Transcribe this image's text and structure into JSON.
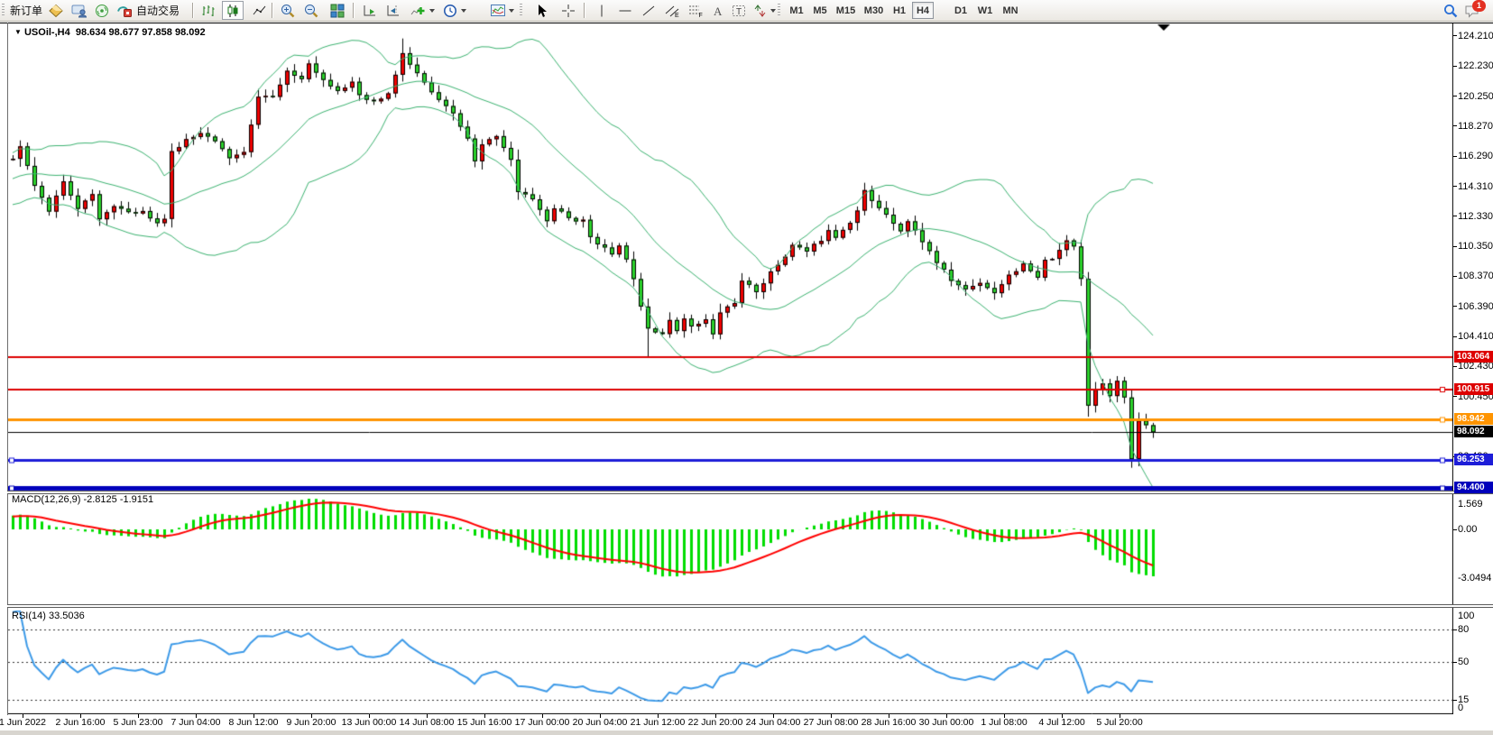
{
  "toolbar": {
    "new_order_label": "新订单",
    "auto_trading_label": "自动交易",
    "timeframes": [
      "M1",
      "M5",
      "M15",
      "M30",
      "H1",
      "H4",
      "D1",
      "W1",
      "MN"
    ],
    "selected_timeframe": "H4",
    "notification_count": "1",
    "icons": [
      "market-watch-icon",
      "community-icon",
      "signals-icon",
      "auto-trading-icon",
      "bar-chart-icon",
      "candlestick-chart-icon",
      "line-chart-icon",
      "zoom-in-icon",
      "zoom-out-icon",
      "tile-windows-icon",
      "auto-scroll-icon",
      "chart-shift-icon",
      "indicators-add-icon",
      "periods-clock-icon",
      "templates-icon",
      "cursor-icon",
      "crosshair-icon",
      "vertical-line-icon",
      "horizontal-line-icon",
      "trendline-icon",
      "equidistant-channel-icon",
      "fibonacci-icon",
      "text-icon",
      "text-label-icon",
      "arrows-icon",
      "search-icon",
      "chat-icon"
    ]
  },
  "chart": {
    "symbol": "USOil-,H4",
    "ohlc": "98.634 98.677 97.858 98.092",
    "price_axis_ticks": [
      "124.210",
      "122.230",
      "120.250",
      "118.270",
      "116.290",
      "114.310",
      "112.330",
      "110.350",
      "108.370",
      "106.390",
      "104.410",
      "102.430",
      "100.450",
      "96.490"
    ],
    "price_axis_values": [
      124.21,
      122.23,
      120.25,
      118.27,
      116.29,
      114.31,
      112.33,
      110.35,
      108.37,
      106.39,
      104.41,
      102.43,
      100.45,
      96.49
    ],
    "hlines": [
      {
        "value": 103.064,
        "label": "103.064",
        "color": "#dd0000",
        "width": 2,
        "markers": "none"
      },
      {
        "value": 100.915,
        "label": "100.915",
        "color": "#dd0000",
        "width": 2,
        "markers": "right"
      },
      {
        "value": 98.942,
        "label": "98.942",
        "color": "#ff9400",
        "width": 3,
        "markers": "right"
      },
      {
        "value": 98.092,
        "label": "98.092",
        "color": "#000000",
        "width": 1,
        "markers": "none"
      },
      {
        "value": 96.253,
        "label": "96.253",
        "color": "#1d1dd8",
        "width": 3,
        "markers": "both"
      },
      {
        "value": 94.4,
        "label": "94.400",
        "color": "#0000bb",
        "width": 5,
        "markers": "both"
      }
    ],
    "colors": {
      "bull": "#f00000",
      "bear": "#2bd22b",
      "wick": "#000000",
      "bollinger": "#3cb371",
      "macd_hist": "#00dd00",
      "macd_signal": "#ff0000",
      "rsi_line": "#3d9ae8"
    },
    "chart_data": {
      "type": "candlestick-ohlc-approx",
      "bars_per_label": 8,
      "anchors_close": [
        [
          -34,
          111.5
        ],
        [
          -26,
          112.3
        ],
        [
          -18,
          113.5
        ],
        [
          -10,
          114.8
        ],
        [
          -3,
          115.7
        ],
        [
          0,
          116.1
        ],
        [
          1,
          116.9
        ],
        [
          3,
          114.3
        ],
        [
          5,
          112.6
        ],
        [
          7,
          114.7
        ],
        [
          9,
          112.9
        ],
        [
          11,
          113.7
        ],
        [
          12,
          112.1
        ],
        [
          14,
          113.1
        ],
        [
          16,
          112.5
        ],
        [
          18,
          112.7
        ],
        [
          20,
          111.9
        ],
        [
          21,
          112.2
        ],
        [
          22,
          116.5
        ],
        [
          24,
          117.4
        ],
        [
          26,
          117.9
        ],
        [
          28,
          117.2
        ],
        [
          30,
          116.2
        ],
        [
          32,
          116.5
        ],
        [
          33,
          118.3
        ],
        [
          34,
          120.3
        ],
        [
          36,
          120.2
        ],
        [
          38,
          121.8
        ],
        [
          40,
          121.4
        ],
        [
          41,
          122.5
        ],
        [
          43,
          121.3
        ],
        [
          45,
          120.7
        ],
        [
          47,
          121.1
        ],
        [
          48,
          120.2
        ],
        [
          50,
          119.8
        ],
        [
          52,
          120.4
        ],
        [
          53,
          121.6
        ],
        [
          54,
          123.1
        ],
        [
          55,
          122.3
        ],
        [
          57,
          121.1
        ],
        [
          59,
          119.9
        ],
        [
          61,
          119.1
        ],
        [
          63,
          117.4
        ],
        [
          64,
          115.9
        ],
        [
          65,
          117.0
        ],
        [
          67,
          117.7
        ],
        [
          69,
          116.1
        ],
        [
          70,
          113.9
        ],
        [
          72,
          113.5
        ],
        [
          74,
          112.0
        ],
        [
          75,
          112.9
        ],
        [
          77,
          112.2
        ],
        [
          79,
          112.0
        ],
        [
          80,
          111.0
        ],
        [
          82,
          110.2
        ],
        [
          83,
          109.7
        ],
        [
          84,
          110.5
        ],
        [
          86,
          108.3
        ],
        [
          87,
          106.5
        ],
        [
          88,
          105.0
        ],
        [
          90,
          104.6
        ],
        [
          91,
          105.4
        ],
        [
          92,
          104.8
        ],
        [
          93,
          105.7
        ],
        [
          94,
          105.0
        ],
        [
          96,
          105.5
        ],
        [
          97,
          104.5
        ],
        [
          98,
          106.0
        ],
        [
          100,
          106.7
        ],
        [
          101,
          108.0
        ],
        [
          103,
          107.4
        ],
        [
          105,
          108.6
        ],
        [
          107,
          109.7
        ],
        [
          108,
          110.5
        ],
        [
          110,
          110.0
        ],
        [
          112,
          110.8
        ],
        [
          113,
          111.5
        ],
        [
          114,
          111.0
        ],
        [
          116,
          112.0
        ],
        [
          117,
          112.7
        ],
        [
          118,
          114.0
        ],
        [
          119,
          113.3
        ],
        [
          121,
          112.5
        ],
        [
          123,
          111.4
        ],
        [
          124,
          112.0
        ],
        [
          126,
          110.7
        ],
        [
          128,
          109.3
        ],
        [
          130,
          108.1
        ],
        [
          132,
          107.5
        ],
        [
          134,
          108.0
        ],
        [
          136,
          107.3
        ],
        [
          138,
          108.5
        ],
        [
          140,
          109.1
        ],
        [
          141,
          108.7
        ],
        [
          142,
          108.2
        ],
        [
          143,
          109.4
        ],
        [
          144,
          109.6
        ],
        [
          145,
          110.0
        ],
        [
          146,
          110.7
        ],
        [
          147,
          110.4
        ],
        [
          148,
          108.3
        ],
        [
          149,
          99.9
        ],
        [
          150,
          100.9
        ],
        [
          151,
          101.4
        ],
        [
          152,
          100.6
        ],
        [
          153,
          101.4
        ],
        [
          154,
          100.4
        ],
        [
          155,
          96.2
        ],
        [
          156,
          98.9
        ],
        [
          158,
          98.09
        ]
      ],
      "wick_high_overrides": {
        "54": 124.05
      },
      "wick_low_overrides": {
        "88": 103.05,
        "155": 95.75
      },
      "indicators": [
        "Bollinger Bands (20,2)",
        "MACD(12,26,9)",
        "RSI(14)"
      ]
    }
  },
  "macd": {
    "label": "MACD(12,26,9) -2.8125 -1.9151",
    "params": [
      12,
      26,
      9
    ],
    "main_value": -2.8125,
    "signal_value": -1.9151,
    "axis_ticks": [
      "1.569",
      "0.00",
      "-3.0494"
    ],
    "axis_values": [
      1.569,
      0.0,
      -3.0494
    ]
  },
  "rsi": {
    "label": "RSI(14) 33.5036",
    "value": 33.5036,
    "levels": [
      80,
      50,
      15
    ],
    "axis_ticks": [
      "100",
      "80",
      "50",
      "15",
      "0"
    ],
    "axis_values": [
      100,
      80,
      50,
      15,
      0
    ]
  },
  "dates": [
    "1 Jun 2022",
    "2 Jun 16:00",
    "5 Jun 23:00",
    "7 Jun 04:00",
    "8 Jun 12:00",
    "9 Jun 20:00",
    "13 Jun 00:00",
    "14 Jun 08:00",
    "15 Jun 16:00",
    "17 Jun 00:00",
    "20 Jun 04:00",
    "21 Jun 12:00",
    "22 Jun 20:00",
    "24 Jun 04:00",
    "27 Jun 08:00",
    "28 Jun 16:00",
    "30 Jun 00:00",
    "1 Jul 08:00",
    "4 Jul 12:00",
    "5 Jul 20:00"
  ]
}
